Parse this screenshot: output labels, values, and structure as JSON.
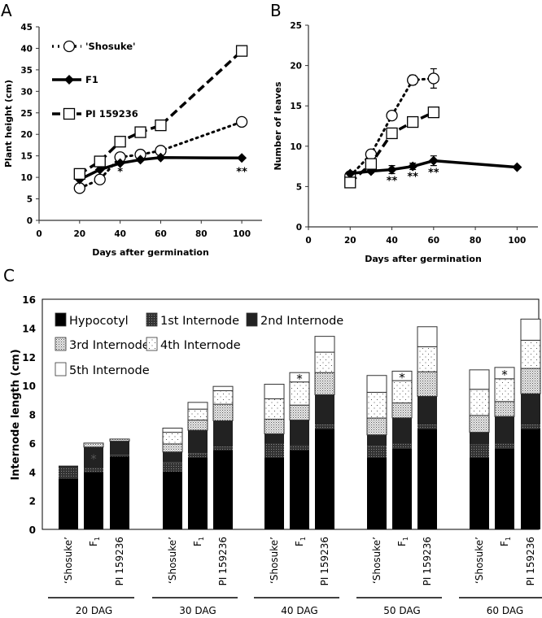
{
  "chart_data": [
    {
      "panel": "A",
      "type": "line",
      "xlabel": "Days after germination",
      "ylabel": "Plant height (cm)",
      "xlim": [
        0,
        110
      ],
      "ylim": [
        0,
        45
      ],
      "xticks": [
        0,
        20,
        40,
        60,
        80,
        100
      ],
      "yticks": [
        0,
        5,
        10,
        15,
        20,
        25,
        30,
        35,
        40,
        45
      ],
      "legend": "top-left",
      "series": [
        {
          "name": "'Shosuke'",
          "style": "dotted-circle",
          "x": [
            20,
            30,
            40,
            50,
            60,
            100
          ],
          "values": [
            7.5,
            9.5,
            14.7,
            15.3,
            16.2,
            22.9
          ]
        },
        {
          "name": "F1",
          "style": "solid-diamond",
          "x": [
            20,
            30,
            40,
            50,
            60,
            100
          ],
          "values": [
            9.5,
            11.8,
            13.3,
            14.1,
            14.6,
            14.5
          ]
        },
        {
          "name": "PI 159236",
          "style": "dashed-square",
          "x": [
            20,
            30,
            40,
            50,
            60,
            100
          ],
          "values": [
            10.8,
            13.7,
            18.3,
            20.5,
            22.1,
            39.4
          ]
        }
      ],
      "annotations": [
        {
          "x": 40,
          "y": 10.5,
          "text": "*"
        },
        {
          "x": 100,
          "y": 10.5,
          "text": "**"
        }
      ]
    },
    {
      "panel": "B",
      "type": "line",
      "xlabel": "Days after germination",
      "ylabel": "Number of leaves",
      "xlim": [
        0,
        110
      ],
      "ylim": [
        0,
        25
      ],
      "xticks": [
        0,
        20,
        40,
        60,
        80,
        100
      ],
      "yticks": [
        0,
        5,
        10,
        15,
        20,
        25
      ],
      "series": [
        {
          "name": "'Shosuke'",
          "style": "dotted-circle",
          "x": [
            20,
            30,
            40,
            50,
            60
          ],
          "values": [
            6.3,
            9.0,
            13.8,
            18.2,
            18.4
          ],
          "error": [
            0,
            0.2,
            0.3,
            0.6,
            1.2
          ]
        },
        {
          "name": "F1",
          "style": "solid-diamond",
          "x": [
            20,
            30,
            40,
            50,
            60,
            100
          ],
          "values": [
            6.6,
            6.9,
            7.1,
            7.5,
            8.2,
            7.4
          ],
          "error": [
            0.2,
            0.2,
            0.5,
            0.4,
            0.6,
            0.1
          ]
        },
        {
          "name": "PI 159236",
          "style": "dashed-square",
          "x": [
            20,
            30,
            40,
            50,
            60
          ],
          "values": [
            5.5,
            7.8,
            11.6,
            13.0,
            14.2
          ],
          "error": [
            0,
            0,
            0,
            0,
            0
          ]
        }
      ],
      "annotations": [
        {
          "x": 40,
          "y": 5.3,
          "text": "**"
        },
        {
          "x": 50,
          "y": 5.8,
          "text": "**"
        },
        {
          "x": 60,
          "y": 6.3,
          "text": "**"
        }
      ]
    },
    {
      "panel": "C",
      "type": "bar",
      "stacked": true,
      "ylabel": "Internode length (cm)",
      "ylim": [
        0,
        16
      ],
      "yticks": [
        0,
        2,
        4,
        6,
        8,
        10,
        12,
        14,
        16
      ],
      "groups": [
        "20 DAG",
        "30 DAG",
        "40 DAG",
        "50 DAG",
        "60 DAG"
      ],
      "categories": [
        "‘Shosuke’",
        "F",
        "PI 159236"
      ],
      "category_subscripts": [
        "",
        "1",
        ""
      ],
      "series_names": [
        "Hypocotyl",
        "1st Internode",
        "2nd Internode",
        "3rd Internode",
        "4th Internode",
        "5th Internode"
      ],
      "legend": "top-left",
      "data": [
        [
          [
            3.55,
            0.75,
            0.13,
            0,
            0,
            0
          ],
          [
            4.0,
            0.27,
            1.45,
            0.28,
            0,
            0
          ],
          [
            5.06,
            0.13,
            0.94,
            0.15,
            0,
            0
          ]
        ],
        [
          [
            4.02,
            0.66,
            0.7,
            0.56,
            0.81,
            0.29
          ],
          [
            5.02,
            0.28,
            1.59,
            0.71,
            0.76,
            0.47
          ],
          [
            5.53,
            0.22,
            1.8,
            1.15,
            0.94,
            0.3
          ]
        ],
        [
          [
            5.02,
            0.92,
            0.7,
            1.02,
            1.42,
            1.01
          ],
          [
            5.53,
            0.32,
            1.75,
            1.04,
            1.61,
            0.65
          ],
          [
            7.0,
            0.28,
            2.08,
            1.54,
            1.42,
            1.1
          ]
        ],
        [
          [
            5.02,
            0.79,
            0.76,
            1.17,
            1.79,
            1.17
          ],
          [
            5.62,
            0.32,
            1.81,
            1.04,
            1.55,
            0.66
          ],
          [
            7.0,
            0.28,
            1.97,
            1.71,
            1.74,
            1.39
          ]
        ],
        [
          [
            5.02,
            0.88,
            0.85,
            1.17,
            1.82,
            1.35
          ],
          [
            5.62,
            0.32,
            1.91,
            1.04,
            1.58,
            0.79
          ],
          [
            7.0,
            0.28,
            2.15,
            1.76,
            1.96,
            1.47
          ]
        ]
      ],
      "annotations": [
        {
          "group": 0,
          "category": 1,
          "segment": 2,
          "text": "*"
        },
        {
          "group": 2,
          "category": 1,
          "segment": 5,
          "text": "*"
        },
        {
          "group": 3,
          "category": 1,
          "segment": 5,
          "text": "*"
        },
        {
          "group": 4,
          "category": 1,
          "segment": 5,
          "text": "*"
        }
      ]
    }
  ],
  "panel_labels": [
    "A",
    "B",
    "C"
  ]
}
